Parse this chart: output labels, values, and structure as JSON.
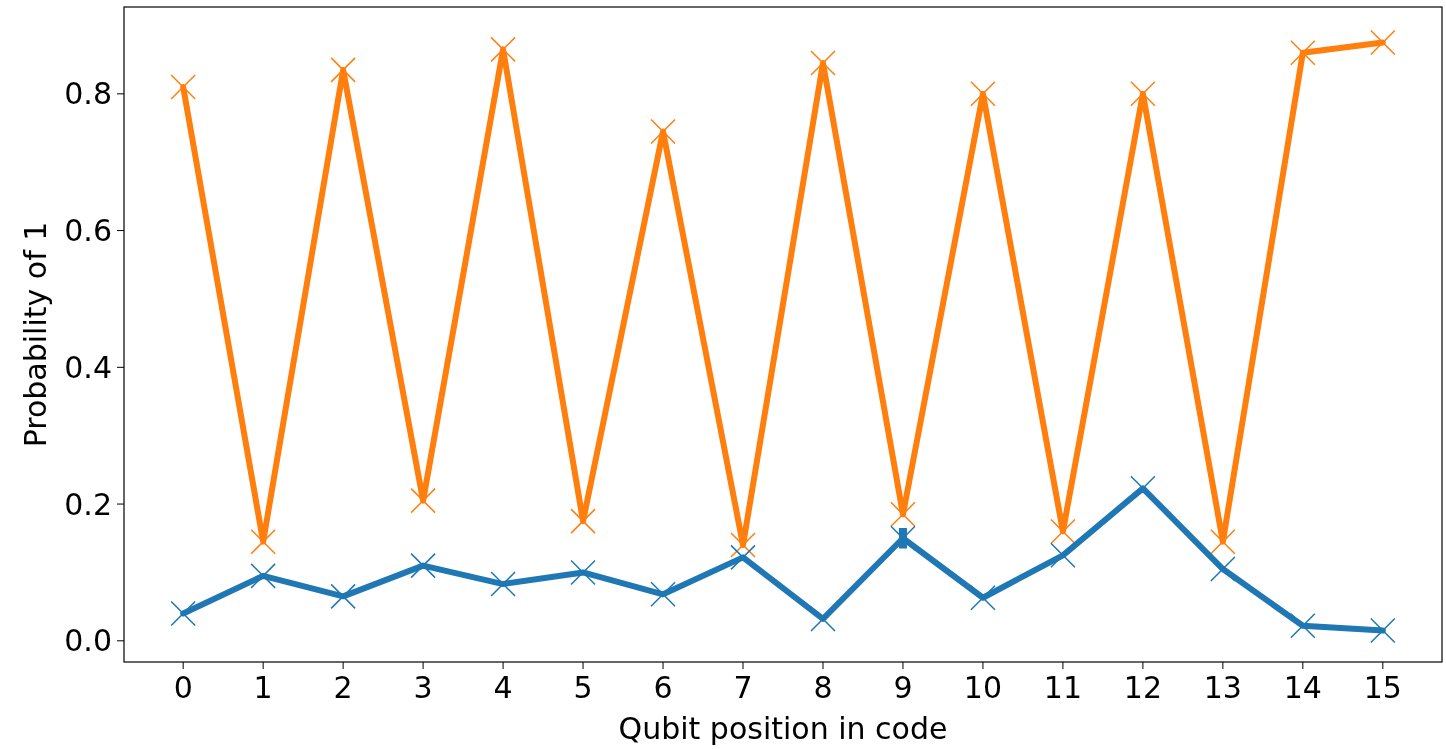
{
  "chart_data": {
    "type": "line",
    "xlabel": "Qubit position in code",
    "ylabel": "Probability of 1",
    "x": [
      0,
      1,
      2,
      3,
      4,
      5,
      6,
      7,
      8,
      9,
      10,
      11,
      12,
      13,
      14,
      15
    ],
    "series": [
      {
        "color": "#ff7f0e",
        "values": [
          0.81,
          0.145,
          0.835,
          0.205,
          0.865,
          0.175,
          0.745,
          0.14,
          0.845,
          0.185,
          0.8,
          0.16,
          0.8,
          0.145,
          0.86,
          0.875
        ]
      },
      {
        "color": "#1f77b4",
        "values": [
          0.04,
          0.095,
          0.065,
          0.11,
          0.083,
          0.1,
          0.068,
          0.122,
          0.032,
          0.15,
          0.063,
          0.125,
          0.223,
          0.105,
          0.022,
          0.015
        ],
        "errors": [
          null,
          null,
          null,
          null,
          null,
          null,
          null,
          null,
          null,
          0.015,
          null,
          null,
          null,
          null,
          null,
          null
        ]
      }
    ],
    "xlim": [
      -0.74,
      15.74
    ],
    "ylim": [
      -0.031,
      0.927
    ],
    "xticks": [
      0,
      1,
      2,
      3,
      4,
      5,
      6,
      7,
      8,
      9,
      10,
      11,
      12,
      13,
      14,
      15
    ],
    "yticks": [
      {
        "value": 0,
        "label": "0.0"
      },
      0.2,
      0.4,
      0.6,
      0.8
    ],
    "marker": "cross",
    "line_style": "solid",
    "grid": false
  }
}
